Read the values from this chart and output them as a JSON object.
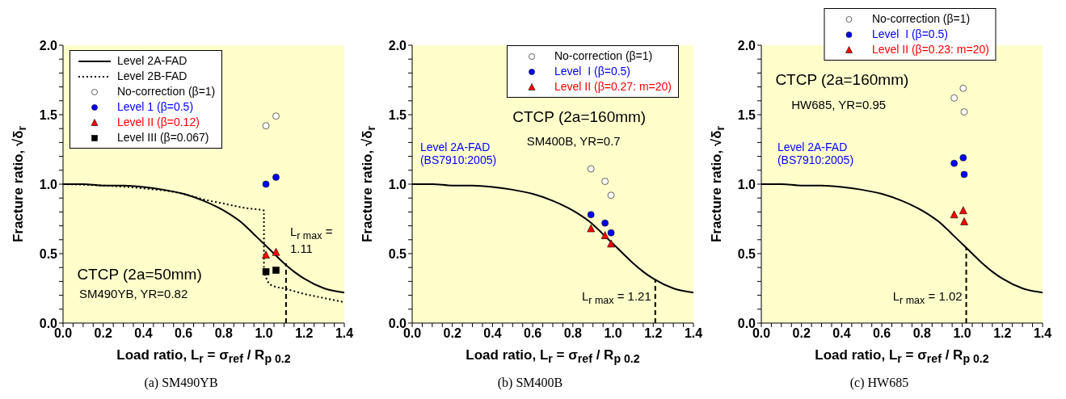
{
  "chart_data": [
    {
      "type": "scatter",
      "title": "(a) SM490YB",
      "xlabel": "Load ratio, L$_{r}$ = σ$_{ref}$ / R$_{p 0.2}$",
      "ylabel": "Fracture ratio, √δ$_{r}$",
      "xlim": [
        0,
        1.4
      ],
      "ylim": [
        0,
        2
      ],
      "xticks": [
        {
          "value": 0,
          "label": "0.0"
        },
        {
          "value": 0.05,
          "label": null
        },
        {
          "value": 0.1,
          "label": null
        },
        {
          "value": 0.15,
          "label": null
        },
        {
          "value": 0.2,
          "label": "0.2"
        },
        {
          "value": 0.25,
          "label": null
        },
        {
          "value": 0.3,
          "label": null
        },
        {
          "value": 0.35,
          "label": null
        },
        {
          "value": 0.4,
          "label": "0.4"
        },
        {
          "value": 0.45,
          "label": null
        },
        {
          "value": 0.5,
          "label": null
        },
        {
          "value": 0.55,
          "label": null
        },
        {
          "value": 0.6,
          "label": "0.6"
        },
        {
          "value": 0.65,
          "label": null
        },
        {
          "value": 0.7,
          "label": null
        },
        {
          "value": 0.75,
          "label": null
        },
        {
          "value": 0.8,
          "label": "0.8"
        },
        {
          "value": 0.85,
          "label": null
        },
        {
          "value": 0.9,
          "label": null
        },
        {
          "value": 0.95,
          "label": null
        },
        {
          "value": 1,
          "label": "1.0"
        },
        {
          "value": 1.05,
          "label": null
        },
        {
          "value": 1.1,
          "label": null
        },
        {
          "value": 1.15,
          "label": null
        },
        {
          "value": 1.2,
          "label": "1.2"
        },
        {
          "value": 1.25,
          "label": null
        },
        {
          "value": 1.3,
          "label": null
        },
        {
          "value": 1.35,
          "label": null
        },
        {
          "value": 1.4,
          "label": "1.4"
        }
      ],
      "yticks": [
        {
          "value": 0,
          "label": "0.0"
        },
        {
          "value": 0.1,
          "label": null
        },
        {
          "value": 0.2,
          "label": null
        },
        {
          "value": 0.3,
          "label": null
        },
        {
          "value": 0.4,
          "label": null
        },
        {
          "value": 0.5,
          "label": "0.5"
        },
        {
          "value": 0.6,
          "label": null
        },
        {
          "value": 0.7,
          "label": null
        },
        {
          "value": 0.8,
          "label": null
        },
        {
          "value": 0.9,
          "label": null
        },
        {
          "value": 1,
          "label": "1.0"
        },
        {
          "value": 1.1,
          "label": null
        },
        {
          "value": 1.2,
          "label": null
        },
        {
          "value": 1.3,
          "label": null
        },
        {
          "value": 1.4,
          "label": null
        },
        {
          "value": 1.5,
          "label": "1.5"
        },
        {
          "value": 1.6,
          "label": null
        },
        {
          "value": 1.7,
          "label": null
        },
        {
          "value": 1.8,
          "label": null
        },
        {
          "value": 1.9,
          "label": null
        },
        {
          "value": 2,
          "label": "2.0"
        }
      ],
      "legend": "top left",
      "annotations": [
        "CTCP (2a=50mm)",
        "SM490YB, YR=0.82",
        "L$_{r max}$ = 1.11"
      ],
      "series": [
        {
          "type": "line",
          "name": "Level 2A-FAD",
          "color": "#000000",
          "line_style": "solid",
          "x": [
            0,
            0.1,
            0.2,
            0.3,
            0.4,
            0.5,
            0.6,
            0.7,
            0.8,
            0.9,
            0.95,
            1.0,
            1.05,
            1.1,
            1.15,
            1.2,
            1.3,
            1.4
          ],
          "values": [
            1.0,
            1.0,
            0.99,
            0.99,
            0.98,
            0.96,
            0.93,
            0.88,
            0.81,
            0.71,
            0.64,
            0.57,
            0.5,
            0.43,
            0.37,
            0.32,
            0.25,
            0.22
          ]
        },
        {
          "type": "line",
          "name": "Level 2B-FAD",
          "color": "#000000",
          "line_style": "dotted",
          "x": [
            0,
            0.2,
            0.4,
            0.6,
            0.7,
            0.8,
            0.9,
            1.0,
            1.0,
            1.01,
            1.04,
            1.1,
            1.2,
            1.3,
            1.4
          ],
          "values": [
            1.0,
            0.99,
            0.97,
            0.93,
            0.89,
            0.86,
            0.83,
            0.81,
            0.4,
            0.33,
            0.27,
            0.25,
            0.21,
            0.18,
            0.15
          ]
        },
        {
          "type": "line",
          "color": "#000000",
          "line_style": "dashed",
          "x": [
            1.11,
            1.11
          ],
          "values": [
            0,
            0.43
          ]
        },
        {
          "name": "No-correction (β=1)",
          "color": "#ffffff",
          "marker": "circle",
          "x": [
            1.01,
            1.06
          ],
          "values": [
            1.42,
            1.49
          ]
        },
        {
          "name": "Level 1 (β=0.5)",
          "color": "#0000ff",
          "marker": "circle",
          "x": [
            1.01,
            1.06
          ],
          "values": [
            1.0,
            1.05
          ]
        },
        {
          "name": "Level II (β=0.12)",
          "color": "#ff0000",
          "marker": "triangle",
          "x": [
            1.01,
            1.06
          ],
          "values": [
            0.49,
            0.51
          ]
        },
        {
          "name": "Level III (β=0.067)",
          "color": "#000000",
          "marker": "square",
          "x": [
            1.01,
            1.06
          ],
          "values": [
            0.37,
            0.38
          ]
        }
      ]
    },
    {
      "type": "scatter",
      "title": "(b) SM400B",
      "xlabel": "Load ratio, L$_{r}$ = σ$_{ref}$ / R$_{p 0.2}$",
      "ylabel": "Fracture ratio, √δ$_{r}$",
      "xlim": [
        0,
        1.4
      ],
      "ylim": [
        0,
        2
      ],
      "xticks": [
        {
          "value": 0,
          "label": "0.0"
        },
        {
          "value": 0.05,
          "label": null
        },
        {
          "value": 0.1,
          "label": null
        },
        {
          "value": 0.15,
          "label": null
        },
        {
          "value": 0.2,
          "label": "0.2"
        },
        {
          "value": 0.25,
          "label": null
        },
        {
          "value": 0.3,
          "label": null
        },
        {
          "value": 0.35,
          "label": null
        },
        {
          "value": 0.4,
          "label": "0.4"
        },
        {
          "value": 0.45,
          "label": null
        },
        {
          "value": 0.5,
          "label": null
        },
        {
          "value": 0.55,
          "label": null
        },
        {
          "value": 0.6,
          "label": "0.6"
        },
        {
          "value": 0.65,
          "label": null
        },
        {
          "value": 0.7,
          "label": null
        },
        {
          "value": 0.75,
          "label": null
        },
        {
          "value": 0.8,
          "label": "0.8"
        },
        {
          "value": 0.85,
          "label": null
        },
        {
          "value": 0.9,
          "label": null
        },
        {
          "value": 0.95,
          "label": null
        },
        {
          "value": 1,
          "label": "1.0"
        },
        {
          "value": 1.05,
          "label": null
        },
        {
          "value": 1.1,
          "label": null
        },
        {
          "value": 1.15,
          "label": null
        },
        {
          "value": 1.2,
          "label": "1.2"
        },
        {
          "value": 1.25,
          "label": null
        },
        {
          "value": 1.3,
          "label": null
        },
        {
          "value": 1.35,
          "label": null
        },
        {
          "value": 1.4,
          "label": "1.4"
        }
      ],
      "yticks": [
        {
          "value": 0,
          "label": "0.0"
        },
        {
          "value": 0.1,
          "label": null
        },
        {
          "value": 0.2,
          "label": null
        },
        {
          "value": 0.3,
          "label": null
        },
        {
          "value": 0.4,
          "label": null
        },
        {
          "value": 0.5,
          "label": "0.5"
        },
        {
          "value": 0.6,
          "label": null
        },
        {
          "value": 0.7,
          "label": null
        },
        {
          "value": 0.8,
          "label": null
        },
        {
          "value": 0.9,
          "label": null
        },
        {
          "value": 1,
          "label": "1.0"
        },
        {
          "value": 1.1,
          "label": null
        },
        {
          "value": 1.2,
          "label": null
        },
        {
          "value": 1.3,
          "label": null
        },
        {
          "value": 1.4,
          "label": null
        },
        {
          "value": 1.5,
          "label": "1.5"
        },
        {
          "value": 1.6,
          "label": null
        },
        {
          "value": 1.7,
          "label": null
        },
        {
          "value": 1.8,
          "label": null
        },
        {
          "value": 1.9,
          "label": null
        },
        {
          "value": 2,
          "label": "2.0"
        }
      ],
      "legend": "top right",
      "annotations": [
        "CTCP (2a=160mm)",
        "SM400B, YR=0.7",
        "Level 2A-FAD (BS7910:2005)",
        "L$_{r max}$ = 1.21"
      ],
      "series": [
        {
          "type": "line",
          "color": "#000000",
          "line_style": "solid",
          "x": [
            0,
            0.1,
            0.2,
            0.3,
            0.4,
            0.5,
            0.6,
            0.7,
            0.8,
            0.9,
            0.95,
            1.0,
            1.05,
            1.1,
            1.15,
            1.2,
            1.3,
            1.4
          ],
          "values": [
            1.0,
            1.0,
            0.99,
            0.99,
            0.98,
            0.96,
            0.93,
            0.88,
            0.81,
            0.71,
            0.64,
            0.57,
            0.5,
            0.43,
            0.37,
            0.32,
            0.25,
            0.22
          ]
        },
        {
          "type": "line",
          "color": "#000000",
          "line_style": "dashed",
          "x": [
            1.21,
            1.21
          ],
          "values": [
            0,
            0.31
          ]
        },
        {
          "name": "No-correction (β=1)",
          "color": "#ffffff",
          "marker": "circle",
          "x": [
            0.89,
            0.96,
            0.99
          ],
          "values": [
            1.11,
            1.02,
            0.92
          ]
        },
        {
          "name": "Level  I (β=0.5)",
          "color": "#0000ff",
          "marker": "circle",
          "x": [
            0.89,
            0.96,
            0.99
          ],
          "values": [
            0.78,
            0.72,
            0.65
          ]
        },
        {
          "name": "Level II (β=0.27: m=20)",
          "color": "#ff0000",
          "marker": "triangle",
          "x": [
            0.89,
            0.96,
            0.99
          ],
          "values": [
            0.68,
            0.63,
            0.57
          ]
        }
      ]
    },
    {
      "type": "scatter",
      "title": "(c) HW685",
      "xlabel": "Load ratio, L$_{r}$ = σ$_{ref}$ / R$_{p 0.2}$",
      "ylabel": "Fracture ratio, √δ$_{r}$",
      "xlim": [
        0,
        1.4
      ],
      "ylim": [
        0,
        2
      ],
      "xticks": [
        {
          "value": 0,
          "label": "0.0"
        },
        {
          "value": 0.05,
          "label": null
        },
        {
          "value": 0.1,
          "label": null
        },
        {
          "value": 0.15,
          "label": null
        },
        {
          "value": 0.2,
          "label": "0.2"
        },
        {
          "value": 0.25,
          "label": null
        },
        {
          "value": 0.3,
          "label": null
        },
        {
          "value": 0.35,
          "label": null
        },
        {
          "value": 0.4,
          "label": "0.4"
        },
        {
          "value": 0.45,
          "label": null
        },
        {
          "value": 0.5,
          "label": null
        },
        {
          "value": 0.55,
          "label": null
        },
        {
          "value": 0.6,
          "label": "0.6"
        },
        {
          "value": 0.65,
          "label": null
        },
        {
          "value": 0.7,
          "label": null
        },
        {
          "value": 0.75,
          "label": null
        },
        {
          "value": 0.8,
          "label": "0.8"
        },
        {
          "value": 0.85,
          "label": null
        },
        {
          "value": 0.9,
          "label": null
        },
        {
          "value": 0.95,
          "label": null
        },
        {
          "value": 1,
          "label": "1.0"
        },
        {
          "value": 1.05,
          "label": null
        },
        {
          "value": 1.1,
          "label": null
        },
        {
          "value": 1.15,
          "label": null
        },
        {
          "value": 1.2,
          "label": "1.2"
        },
        {
          "value": 1.25,
          "label": null
        },
        {
          "value": 1.3,
          "label": null
        },
        {
          "value": 1.35,
          "label": null
        },
        {
          "value": 1.4,
          "label": "1.4"
        }
      ],
      "yticks": [
        {
          "value": 0,
          "label": "0.0"
        },
        {
          "value": 0.1,
          "label": null
        },
        {
          "value": 0.2,
          "label": null
        },
        {
          "value": 0.3,
          "label": null
        },
        {
          "value": 0.4,
          "label": null
        },
        {
          "value": 0.5,
          "label": "0.5"
        },
        {
          "value": 0.6,
          "label": null
        },
        {
          "value": 0.7,
          "label": null
        },
        {
          "value": 0.8,
          "label": null
        },
        {
          "value": 0.9,
          "label": null
        },
        {
          "value": 1,
          "label": "1.0"
        },
        {
          "value": 1.1,
          "label": null
        },
        {
          "value": 1.2,
          "label": null
        },
        {
          "value": 1.3,
          "label": null
        },
        {
          "value": 1.4,
          "label": null
        },
        {
          "value": 1.5,
          "label": "1.5"
        },
        {
          "value": 1.6,
          "label": null
        },
        {
          "value": 1.7,
          "label": null
        },
        {
          "value": 1.8,
          "label": null
        },
        {
          "value": 1.9,
          "label": null
        },
        {
          "value": 2,
          "label": "2.0"
        }
      ],
      "legend": "top",
      "annotations": [
        "CTCP (2a=160mm)",
        "HW685, YR=0.95",
        "Level 2A-FAD (BS7910:2005)",
        "L$_{r max}$ = 1.02"
      ],
      "series": [
        {
          "type": "line",
          "color": "#000000",
          "line_style": "solid",
          "x": [
            0,
            0.1,
            0.2,
            0.3,
            0.4,
            0.5,
            0.6,
            0.7,
            0.8,
            0.9,
            0.95,
            1.0,
            1.05,
            1.1,
            1.15,
            1.2,
            1.3,
            1.4
          ],
          "values": [
            1.0,
            1.0,
            0.99,
            0.99,
            0.98,
            0.96,
            0.93,
            0.88,
            0.81,
            0.71,
            0.64,
            0.57,
            0.5,
            0.43,
            0.37,
            0.32,
            0.25,
            0.22
          ]
        },
        {
          "type": "line",
          "color": "#000000",
          "line_style": "dashed",
          "x": [
            1.02,
            1.02
          ],
          "values": [
            0,
            0.54
          ]
        },
        {
          "name": "No-correction (β=1)",
          "color": "#ffffff",
          "marker": "circle",
          "x": [
            0.96,
            1.005,
            1.01
          ],
          "values": [
            1.62,
            1.69,
            1.52
          ]
        },
        {
          "name": "Level  I (β=0.5)",
          "color": "#0000ff",
          "marker": "circle",
          "x": [
            0.96,
            1.005,
            1.01
          ],
          "values": [
            1.15,
            1.19,
            1.07
          ]
        },
        {
          "name": "Level II (β=0.23: m=20)",
          "color": "#ff0000",
          "marker": "triangle",
          "x": [
            0.96,
            1.005,
            1.01
          ],
          "values": [
            0.78,
            0.81,
            0.73
          ]
        }
      ]
    }
  ]
}
